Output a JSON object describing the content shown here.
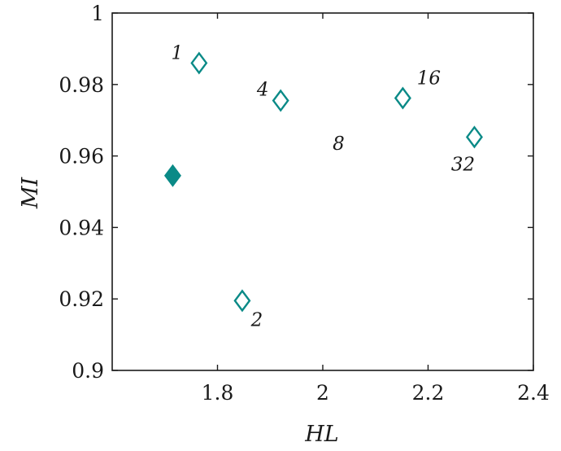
{
  "colors": {
    "marker": "#0a8a87",
    "axis": "#1a1a1a",
    "background": "#ffffff"
  },
  "chart_data": {
    "type": "scatter",
    "title": "",
    "xlabel": "HL",
    "ylabel": "MI",
    "xlim": [
      1.6,
      2.4
    ],
    "ylim": [
      0.9,
      1.0
    ],
    "xticks": [
      1.8,
      2.0,
      2.2,
      2.4
    ],
    "xtick_labels": [
      "1.8",
      "2",
      "2.2",
      "2.4"
    ],
    "yticks": [
      0.9,
      0.92,
      0.94,
      0.96,
      0.98,
      1.0
    ],
    "ytick_labels": [
      "0.9",
      "0.92",
      "0.94",
      "0.96",
      "0.98",
      "1"
    ],
    "grid": false,
    "marker": "diamond",
    "points": [
      {
        "x": 1.715,
        "y": 0.9545,
        "label": "",
        "filled": true
      },
      {
        "x": 1.765,
        "y": 0.986,
        "label": "1",
        "filled": false
      },
      {
        "x": 1.847,
        "y": 0.9195,
        "label": "2",
        "filled": false
      },
      {
        "x": 1.92,
        "y": 0.9755,
        "label": "4",
        "filled": false
      },
      {
        "x": 2.152,
        "y": 0.9762,
        "label": "16",
        "filled": false
      },
      {
        "x": 2.288,
        "y": 0.9653,
        "label": "32",
        "filled": false
      }
    ],
    "annotations": [
      {
        "text": "8",
        "x": 2.03,
        "y": 0.9635
      }
    ]
  }
}
